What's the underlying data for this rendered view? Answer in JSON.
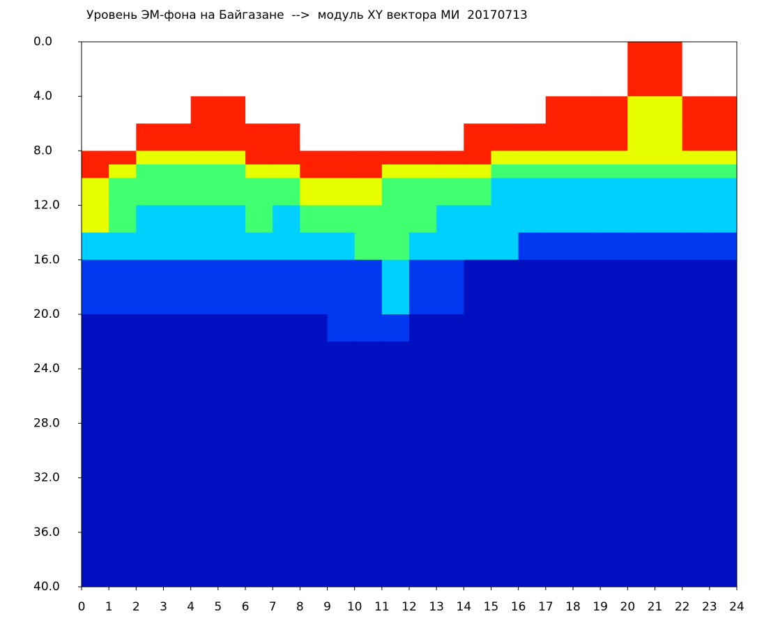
{
  "chart_data": {
    "type": "heatmap",
    "title": "Уровень ЭМ-фона на Байгазане  -->  модуль XY вектора МИ  20170713",
    "x_bins": [
      0,
      1,
      2,
      3,
      4,
      5,
      6,
      7,
      8,
      9,
      10,
      11,
      12,
      13,
      14,
      15,
      16,
      17,
      18,
      19,
      20,
      21,
      22,
      23,
      24
    ],
    "y_bins": [
      0,
      4,
      6,
      8,
      9,
      10,
      12,
      14,
      16,
      20,
      22,
      40
    ],
    "colormap": [
      "#ffffff",
      "#0010c0",
      "#0038f0",
      "#00d0ff",
      "#40ff70",
      "#e8ff00",
      "#ff2000"
    ],
    "z": [
      [
        0,
        0,
        0,
        6,
        6,
        5,
        5,
        3,
        2,
        1,
        1
      ],
      [
        0,
        0,
        0,
        6,
        5,
        4,
        4,
        3,
        2,
        1,
        1
      ],
      [
        0,
        0,
        6,
        5,
        4,
        4,
        3,
        3,
        2,
        1,
        1
      ],
      [
        0,
        0,
        6,
        5,
        4,
        4,
        3,
        3,
        2,
        1,
        1
      ],
      [
        0,
        6,
        6,
        5,
        4,
        4,
        3,
        3,
        2,
        1,
        1
      ],
      [
        0,
        6,
        6,
        5,
        4,
        4,
        3,
        3,
        2,
        1,
        1
      ],
      [
        0,
        0,
        6,
        6,
        5,
        4,
        4,
        3,
        2,
        1,
        1
      ],
      [
        0,
        0,
        6,
        6,
        5,
        4,
        3,
        3,
        2,
        1,
        1
      ],
      [
        0,
        0,
        0,
        6,
        6,
        5,
        4,
        3,
        2,
        1,
        1
      ],
      [
        0,
        0,
        0,
        6,
        6,
        5,
        4,
        3,
        2,
        2,
        1
      ],
      [
        0,
        0,
        0,
        6,
        6,
        5,
        4,
        4,
        2,
        2,
        1
      ],
      [
        0,
        0,
        0,
        6,
        5,
        4,
        4,
        4,
        3,
        2,
        1
      ],
      [
        0,
        0,
        0,
        6,
        5,
        4,
        4,
        3,
        2,
        1,
        1
      ],
      [
        0,
        0,
        0,
        6,
        5,
        4,
        3,
        3,
        2,
        1,
        1
      ],
      [
        0,
        0,
        6,
        6,
        5,
        4,
        3,
        3,
        1,
        1,
        1
      ],
      [
        0,
        0,
        6,
        5,
        4,
        3,
        3,
        3,
        1,
        1,
        1
      ],
      [
        0,
        0,
        6,
        5,
        4,
        3,
        3,
        2,
        1,
        1,
        1
      ],
      [
        0,
        6,
        6,
        5,
        4,
        3,
        3,
        2,
        1,
        1,
        1
      ],
      [
        0,
        6,
        6,
        5,
        4,
        3,
        3,
        2,
        1,
        1,
        1
      ],
      [
        0,
        6,
        6,
        5,
        4,
        3,
        3,
        2,
        1,
        1,
        1
      ],
      [
        6,
        5,
        5,
        5,
        4,
        3,
        3,
        2,
        1,
        1,
        1
      ],
      [
        6,
        5,
        5,
        5,
        4,
        3,
        3,
        2,
        1,
        1,
        1
      ],
      [
        0,
        6,
        6,
        5,
        4,
        3,
        3,
        2,
        1,
        1,
        1
      ],
      [
        0,
        6,
        6,
        5,
        4,
        3,
        3,
        2,
        1,
        1,
        1
      ]
    ],
    "xlim": [
      0,
      24
    ],
    "xticks": [
      0,
      1,
      2,
      3,
      4,
      5,
      6,
      7,
      8,
      9,
      10,
      11,
      12,
      13,
      14,
      15,
      16,
      17,
      18,
      19,
      20,
      21,
      22,
      23,
      24
    ],
    "ylim": [
      0,
      40
    ],
    "y_inverted": true,
    "yticks": [
      {
        "value": 0,
        "label": "0.0"
      },
      {
        "value": 4,
        "label": "4.0"
      },
      {
        "value": 8,
        "label": "8.0"
      },
      {
        "value": 12,
        "label": "12.0"
      },
      {
        "value": 16,
        "label": "16.0"
      },
      {
        "value": 20,
        "label": "20.0"
      },
      {
        "value": 24,
        "label": "24.0"
      },
      {
        "value": 28,
        "label": "28.0"
      },
      {
        "value": 32,
        "label": "32.0"
      },
      {
        "value": 36,
        "label": "36.0"
      },
      {
        "value": 40,
        "label": "40.0"
      }
    ]
  }
}
